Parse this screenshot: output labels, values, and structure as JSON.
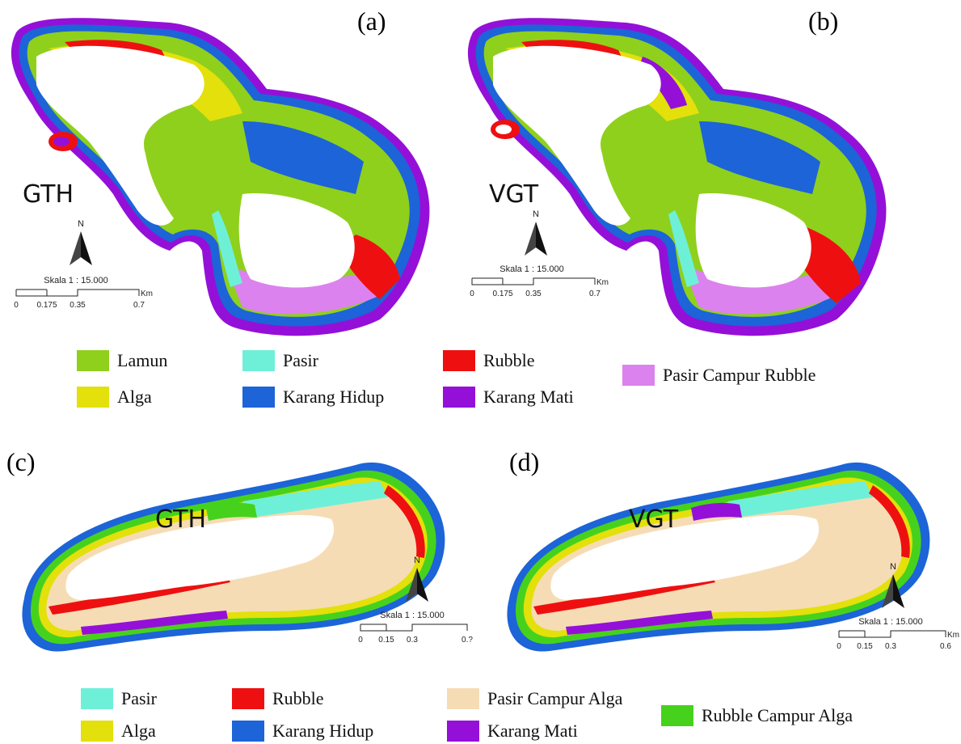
{
  "panels": [
    {
      "label": "(a)",
      "title": "GTH",
      "scale_text": "Skala 1 : 15.000",
      "north": "N",
      "ticks": [
        "0",
        "0.175",
        "0.35",
        "0.7"
      ],
      "unit": "Km"
    },
    {
      "label": "(b)",
      "title": "VGT",
      "scale_text": "Skala 1 : 15.000",
      "north": "N",
      "ticks": [
        "0",
        "0.175",
        "0.35",
        "0.7"
      ],
      "unit": "Km"
    },
    {
      "label": "(c)",
      "title": "GTH",
      "scale_text": "Skala 1 : 15.000",
      "north": "N",
      "ticks": [
        "0",
        "0.15",
        "0.3",
        "0.?"
      ],
      "unit": ""
    },
    {
      "label": "(d)",
      "title": "VGT",
      "scale_text": "Skala 1 : 15.000",
      "north": "N",
      "ticks": [
        "0",
        "0.15",
        "0.3",
        "0.6"
      ],
      "unit": "Km"
    }
  ],
  "legend_top": [
    {
      "label": "Lamun",
      "color": "#8fd01c"
    },
    {
      "label": "Alga",
      "color": "#e3e00c"
    },
    {
      "label": "Pasir",
      "color": "#6ef0d8"
    },
    {
      "label": "Karang Hidup",
      "color": "#1c64d8"
    },
    {
      "label": "Rubble",
      "color": "#ee1010"
    },
    {
      "label": "Karang Mati",
      "color": "#9410d8"
    },
    {
      "label": "Pasir Campur Rubble",
      "color": "#dc82ee"
    }
  ],
  "legend_bottom": [
    {
      "label": "Pasir",
      "color": "#6ef0d8"
    },
    {
      "label": "Alga",
      "color": "#e3e00c"
    },
    {
      "label": "Rubble",
      "color": "#ee1010"
    },
    {
      "label": "Karang Hidup",
      "color": "#1c64d8"
    },
    {
      "label": "Pasir Campur Alga",
      "color": "#f6dcb4"
    },
    {
      "label": "Karang Mati",
      "color": "#9410d8"
    },
    {
      "label": "Rubble Campur Alga",
      "color": "#46d21c"
    }
  ]
}
